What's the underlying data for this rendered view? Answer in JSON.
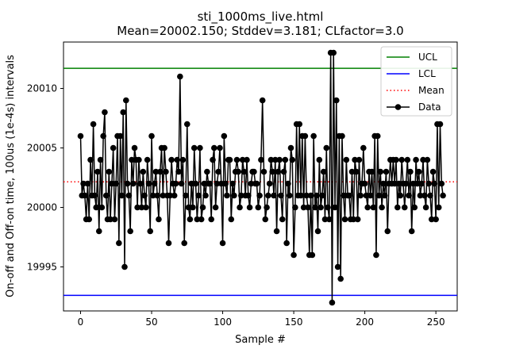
{
  "chart_data": {
    "type": "line",
    "title_line1": "sti_1000ms_live.html",
    "title_line2": "Mean=20002.150; Stddev=3.181; CLfactor=3.0",
    "xlabel": "Sample #",
    "ylabel": "On-off and Off-on time, 100us (1e-4s) intervals",
    "xlim": [
      -12,
      265
    ],
    "ylim": [
      19991.3,
      20013.9
    ],
    "xticks": [
      0,
      50,
      100,
      150,
      200,
      250
    ],
    "yticks": [
      19995,
      20000,
      20005,
      20010
    ],
    "xtick_labels": [
      "0",
      "50",
      "100",
      "150",
      "200",
      "250"
    ],
    "ytick_labels": [
      "19995",
      "20000",
      "20005",
      "20010"
    ],
    "grid": false,
    "legend_location": "upper right",
    "ucl": 20011.69,
    "lcl": 19992.61,
    "mean": 20002.15,
    "colors": {
      "ucl": "#008000",
      "lcl": "#0000ff",
      "mean": "#ff0000",
      "data": "#000000"
    },
    "legend": [
      {
        "key": "ucl",
        "label": "UCL",
        "style": "solid"
      },
      {
        "key": "lcl",
        "label": "LCL",
        "style": "solid"
      },
      {
        "key": "mean",
        "label": "Mean",
        "style": "dotted"
      },
      {
        "key": "data",
        "label": "Data",
        "style": "marker"
      }
    ],
    "series": [
      {
        "name": "Data",
        "values": [
          20006,
          20001,
          20002,
          20001,
          19999,
          20002,
          19999,
          20004,
          20001,
          20007,
          20001,
          20000,
          20003,
          19998,
          20004,
          20000,
          20006,
          20008,
          20001,
          19999,
          20003,
          19999,
          20002,
          20005,
          19999,
          20002,
          20006,
          19997,
          20006,
          20001,
          20008,
          19995,
          20009,
          20002,
          20001,
          19998,
          20004,
          20002,
          20005,
          20004,
          20000,
          20004,
          20002,
          20000,
          20003,
          20001,
          20000,
          20004,
          20002,
          19998,
          20006,
          20001,
          20002,
          20003,
          20001,
          19999,
          20003,
          20005,
          20001,
          20005,
          20003,
          20001,
          19997,
          20001,
          20004,
          20002,
          20001,
          20002,
          20004,
          20003,
          20011,
          20002,
          20004,
          19997,
          20001,
          20007,
          20000,
          19999,
          20002,
          20000,
          20005,
          20002,
          19999,
          20001,
          20005,
          19999,
          20000,
          20002,
          20001,
          20003,
          20002,
          20002,
          19999,
          20004,
          20005,
          20000,
          20002,
          20003,
          20005,
          20002,
          19997,
          20006,
          20002,
          20001,
          20004,
          20004,
          19999,
          20002,
          20001,
          20003,
          20004,
          20003,
          20000,
          20001,
          20004,
          20003,
          20001,
          20004,
          20001,
          20000,
          20002,
          20003,
          20003,
          20002,
          20002,
          20000,
          20001,
          20004,
          20009,
          20003,
          19999,
          20000,
          20001,
          20002,
          20004,
          20003,
          20001,
          20004,
          19998,
          20003,
          20004,
          20001,
          19999,
          20003,
          20004,
          19997,
          20002,
          20001,
          20005,
          20004,
          19996,
          20000,
          20007,
          20001,
          20007,
          20001,
          20006,
          20000,
          20006,
          20001,
          20000,
          19996,
          20001,
          19996,
          20006,
          20000,
          20001,
          19998,
          20004,
          20000,
          20001,
          20003,
          19999,
          20005,
          20000,
          19999,
          20013,
          19992,
          20013,
          20000,
          20009,
          19995,
          20006,
          19994,
          20006,
          20001,
          19999,
          20004,
          20001,
          20001,
          19999,
          20003,
          19999,
          20004,
          20003,
          19999,
          20004,
          20001,
          20002,
          20005,
          20002,
          20001,
          20000,
          20003,
          20001,
          20003,
          20000,
          20006,
          19996,
          20006,
          20001,
          20003,
          20000,
          20002,
          20001,
          20003,
          19998,
          20002,
          20004,
          20002,
          20004,
          20002,
          20004,
          20000,
          20002,
          20001,
          20004,
          20002,
          20000,
          20002,
          20004,
          20001,
          20003,
          19998,
          20002,
          20000,
          20004,
          20002,
          20003,
          20001,
          20002,
          20004,
          20001,
          20000,
          20004,
          20002,
          20001,
          19999,
          20003,
          20002,
          19999,
          20007,
          20000,
          20007,
          20002,
          20001
        ]
      }
    ]
  }
}
